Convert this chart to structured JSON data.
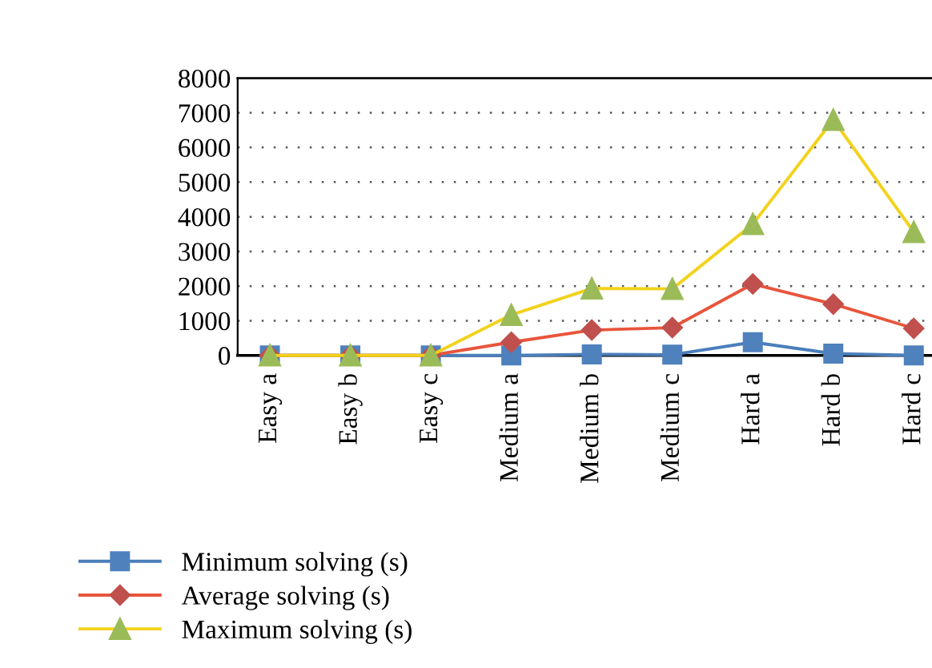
{
  "chart_data": {
    "type": "line",
    "categories": [
      "Easy a",
      "Easy b",
      "Easy c",
      "Medium a",
      "Medium b",
      "Medium c",
      "Hard a",
      "Hard b",
      "Hard c"
    ],
    "series": [
      {
        "name": "Minimum solving (s)",
        "color": "#4a7ebb",
        "marker": "square",
        "values": [
          0,
          0,
          0,
          0,
          30,
          20,
          380,
          50,
          0
        ]
      },
      {
        "name": "Average solving (s)",
        "color": "#e8553b",
        "marker": "diamond",
        "values": [
          0,
          0,
          0,
          380,
          730,
          800,
          2060,
          1480,
          780
        ]
      },
      {
        "name": "Maximum solving (s)",
        "color": "#f2d21c",
        "marker": "triangle",
        "values": [
          0,
          0,
          0,
          1170,
          1930,
          1920,
          3790,
          6800,
          3560
        ]
      }
    ],
    "ylim": [
      0,
      8000
    ],
    "yticks": [
      0,
      1000,
      2000,
      3000,
      4000,
      5000,
      6000,
      7000,
      8000
    ],
    "grid": "y",
    "legend": "bottom left",
    "line_style": "solid"
  }
}
